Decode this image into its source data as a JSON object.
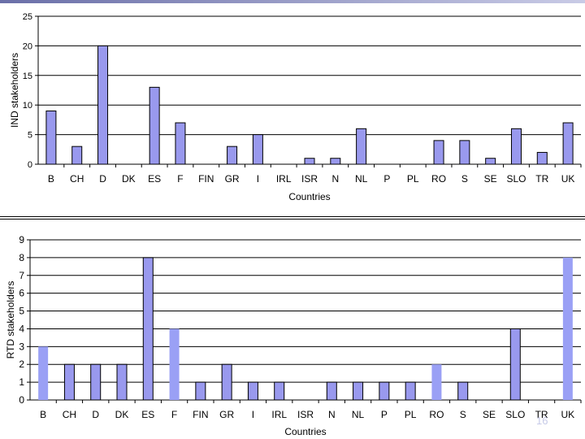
{
  "colors": {
    "bar": "#9999ee",
    "bar_light": "#9aa0f5",
    "bar_stroke": "#000000",
    "page_number": "#c7cbe8"
  },
  "page_number": "16",
  "chart_data": [
    {
      "type": "bar",
      "xlabel": "Countries",
      "ylabel": "IND stakeholders",
      "ylim": [
        0,
        25
      ],
      "yticks": [
        0,
        5,
        10,
        15,
        20,
        25
      ],
      "grid": true,
      "categories": [
        "B",
        "CH",
        "D",
        "DK",
        "ES",
        "F",
        "FIN",
        "GR",
        "I",
        "IRL",
        "ISR",
        "N",
        "NL",
        "P",
        "PL",
        "RO",
        "S",
        "SE",
        "SLO",
        "TR",
        "UK"
      ],
      "values": [
        9,
        3,
        20,
        0,
        13,
        7,
        0,
        3,
        5,
        0,
        1,
        1,
        6,
        0,
        0,
        4,
        4,
        1,
        6,
        2,
        7
      ]
    },
    {
      "type": "bar",
      "xlabel": "Countries",
      "ylabel": "RTD stakeholders",
      "ylim": [
        0,
        9
      ],
      "yticks": [
        0,
        1,
        2,
        3,
        4,
        5,
        6,
        7,
        8,
        9
      ],
      "grid": true,
      "categories": [
        "B",
        "CH",
        "D",
        "DK",
        "ES",
        "F",
        "FIN",
        "GR",
        "I",
        "IRL",
        "ISR",
        "N",
        "NL",
        "P",
        "PL",
        "RO",
        "S",
        "SE",
        "SLO",
        "TR",
        "UK"
      ],
      "values": [
        3,
        2,
        2,
        2,
        8,
        4,
        1,
        2,
        1,
        1,
        0,
        1,
        1,
        1,
        1,
        2,
        1,
        0,
        4,
        0,
        8
      ],
      "highlighted_categories": [
        "B",
        "F",
        "RO",
        "UK"
      ]
    }
  ]
}
